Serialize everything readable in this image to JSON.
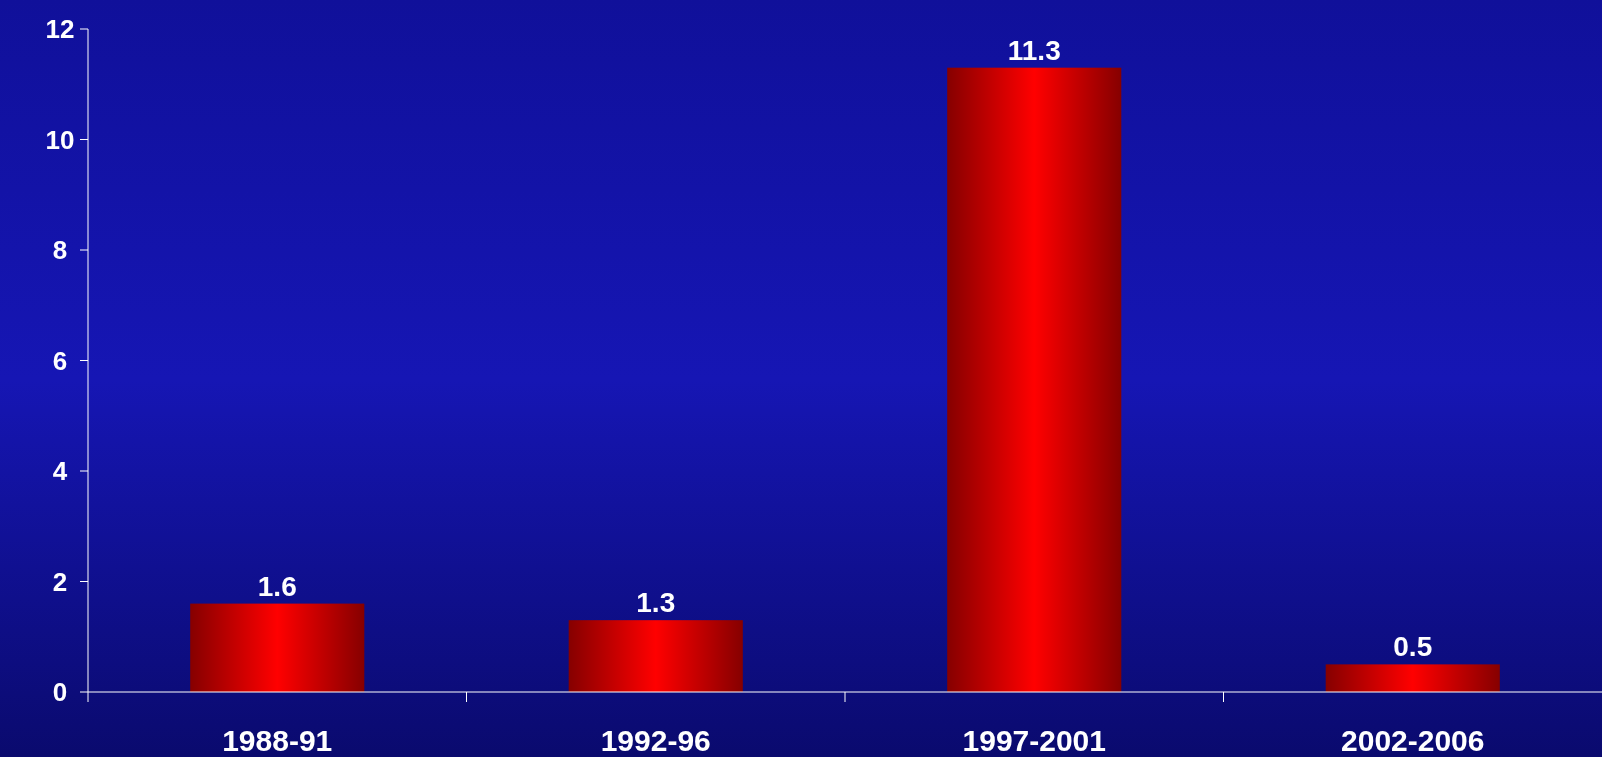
{
  "chart_data": {
    "type": "bar",
    "categories": [
      "1988-91",
      "1992-96",
      "1997-2001",
      "2002-2006"
    ],
    "values": [
      1.6,
      1.3,
      11.3,
      0.5
    ],
    "color": "#ff0000",
    "ylim": [
      0,
      12
    ],
    "yticks": [
      0,
      2,
      4,
      6,
      8,
      10,
      12
    ],
    "data_labels": true,
    "grid": false
  }
}
